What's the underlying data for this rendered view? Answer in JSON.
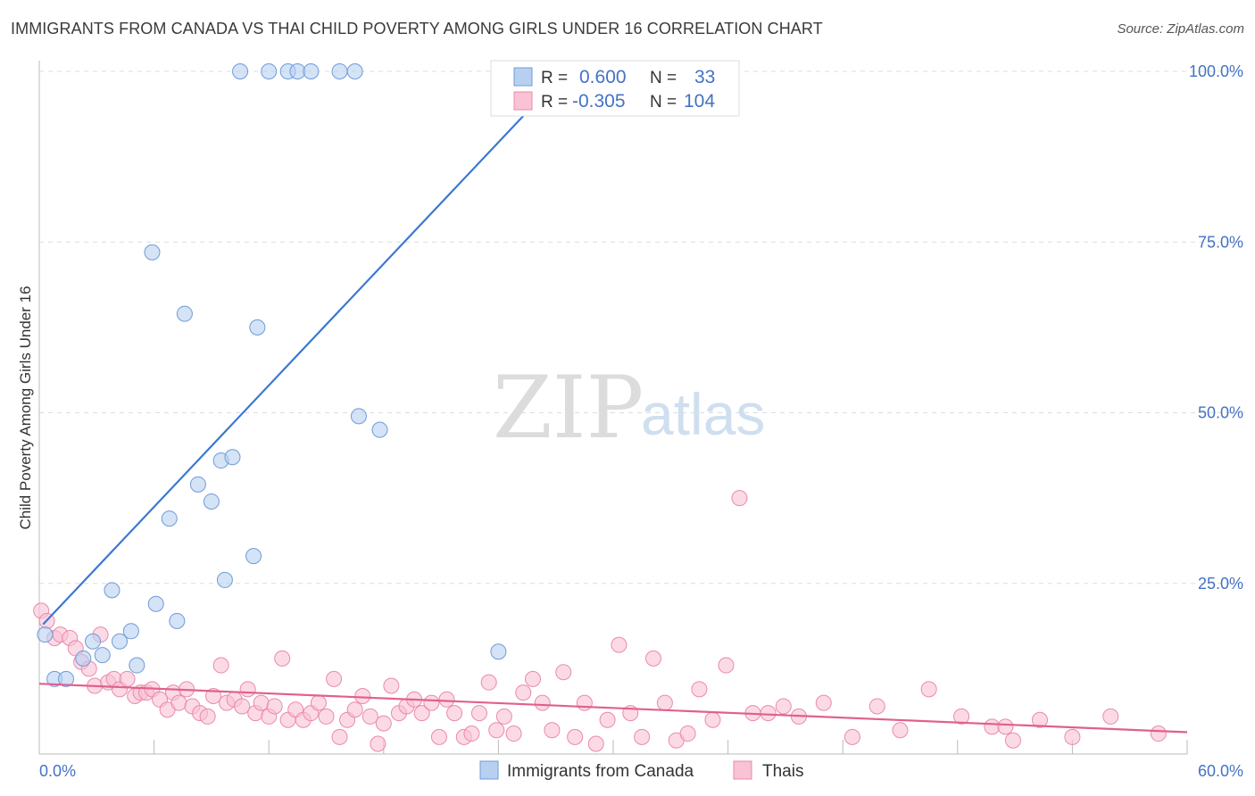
{
  "header": {
    "title": "IMMIGRANTS FROM CANADA VS THAI CHILD POVERTY AMONG GIRLS UNDER 16 CORRELATION CHART",
    "source": "Source: ZipAtlas.com"
  },
  "watermark": {
    "zip": "ZIP",
    "atlas": "atlas"
  },
  "colors": {
    "blue_fill": "#b8d0f0",
    "blue_stroke": "#6f9bd8",
    "blue_line": "#3a78d2",
    "pink_fill": "#f9c2d5",
    "pink_stroke": "#ea8aaa",
    "pink_line": "#e0608c",
    "tick_text": "#4472c4",
    "grid": "#dddddd"
  },
  "stats": {
    "blue": {
      "r_label": "R =",
      "r_value": "0.600",
      "n_label": "N =",
      "n_value": "33"
    },
    "pink": {
      "r_label": "R =",
      "r_value": "-0.305",
      "n_label": "N =",
      "n_value": "104"
    }
  },
  "chart_data": {
    "type": "scatter",
    "title": "IMMIGRANTS FROM CANADA VS THAI CHILD POVERTY AMONG GIRLS UNDER 16 CORRELATION CHART",
    "xlabel": "",
    "ylabel": "Child Poverty Among Girls Under 16",
    "xlim": [
      0,
      60
    ],
    "ylim": [
      0,
      100
    ],
    "x_ticks": [
      {
        "value": 0,
        "label": "0.0%"
      },
      {
        "value": 60,
        "label": "60.0%"
      }
    ],
    "y_ticks": [
      {
        "value": 25,
        "label": "25.0%"
      },
      {
        "value": 50,
        "label": "50.0%"
      },
      {
        "value": 75,
        "label": "75.0%"
      },
      {
        "value": 100,
        "label": "100.0%"
      }
    ],
    "grid": "horizontal dashed",
    "legend_position": "bottom-center",
    "series": [
      {
        "name": "Immigrants from Canada",
        "color": "#b8d0f0",
        "r": 0.6,
        "n": 33,
        "trend": {
          "x": [
            0.2,
            27.5
          ],
          "y": [
            19.0,
            100.0
          ]
        },
        "points": [
          [
            0.3,
            17.5
          ],
          [
            0.8,
            11.0
          ],
          [
            1.4,
            11.0
          ],
          [
            2.3,
            14.0
          ],
          [
            2.8,
            16.5
          ],
          [
            3.3,
            14.5
          ],
          [
            3.8,
            24.0
          ],
          [
            4.2,
            16.5
          ],
          [
            4.8,
            18.0
          ],
          [
            5.1,
            13.0
          ],
          [
            5.9,
            73.5
          ],
          [
            6.1,
            22.0
          ],
          [
            6.8,
            34.5
          ],
          [
            7.2,
            19.5
          ],
          [
            7.6,
            64.5
          ],
          [
            8.3,
            39.5
          ],
          [
            9.0,
            37.0
          ],
          [
            9.5,
            43.0
          ],
          [
            9.7,
            25.5
          ],
          [
            10.1,
            43.5
          ],
          [
            10.5,
            100.0
          ],
          [
            11.2,
            29.0
          ],
          [
            11.4,
            62.5
          ],
          [
            12.0,
            100.0
          ],
          [
            13.0,
            100.0
          ],
          [
            13.5,
            100.0
          ],
          [
            14.2,
            100.0
          ],
          [
            15.7,
            100.0
          ],
          [
            16.5,
            100.0
          ],
          [
            16.7,
            49.5
          ],
          [
            17.8,
            47.5
          ],
          [
            24.0,
            15.0
          ],
          [
            33.2,
            100.0
          ]
        ]
      },
      {
        "name": "Thais",
        "color": "#f9c2d5",
        "r": -0.305,
        "n": 104,
        "trend": {
          "x": [
            0,
            60
          ],
          "y": [
            10.3,
            3.2
          ]
        },
        "points": [
          [
            0.1,
            21.0
          ],
          [
            0.4,
            19.5
          ],
          [
            0.8,
            17.0
          ],
          [
            1.1,
            17.5
          ],
          [
            1.6,
            17.0
          ],
          [
            1.9,
            15.5
          ],
          [
            2.2,
            13.5
          ],
          [
            2.6,
            12.5
          ],
          [
            2.9,
            10.0
          ],
          [
            3.2,
            17.5
          ],
          [
            3.6,
            10.5
          ],
          [
            3.9,
            11.0
          ],
          [
            4.2,
            9.5
          ],
          [
            4.6,
            11.0
          ],
          [
            5.0,
            8.5
          ],
          [
            5.3,
            9.0
          ],
          [
            5.6,
            9.0
          ],
          [
            5.9,
            9.5
          ],
          [
            6.3,
            8.0
          ],
          [
            6.7,
            6.5
          ],
          [
            7.0,
            9.0
          ],
          [
            7.3,
            7.5
          ],
          [
            7.7,
            9.5
          ],
          [
            8.0,
            7.0
          ],
          [
            8.4,
            6.0
          ],
          [
            8.8,
            5.5
          ],
          [
            9.1,
            8.5
          ],
          [
            9.5,
            13.0
          ],
          [
            9.8,
            7.5
          ],
          [
            10.2,
            8.0
          ],
          [
            10.6,
            7.0
          ],
          [
            10.9,
            9.5
          ],
          [
            11.3,
            6.0
          ],
          [
            11.6,
            7.5
          ],
          [
            12.0,
            5.5
          ],
          [
            12.3,
            7.0
          ],
          [
            12.7,
            14.0
          ],
          [
            13.0,
            5.0
          ],
          [
            13.4,
            6.5
          ],
          [
            13.8,
            5.0
          ],
          [
            14.2,
            6.0
          ],
          [
            14.6,
            7.5
          ],
          [
            15.0,
            5.5
          ],
          [
            15.4,
            11.0
          ],
          [
            15.7,
            2.5
          ],
          [
            16.1,
            5.0
          ],
          [
            16.5,
            6.5
          ],
          [
            16.9,
            8.5
          ],
          [
            17.3,
            5.5
          ],
          [
            17.7,
            1.5
          ],
          [
            18.0,
            4.5
          ],
          [
            18.4,
            10.0
          ],
          [
            18.8,
            6.0
          ],
          [
            19.2,
            7.0
          ],
          [
            19.6,
            8.0
          ],
          [
            20.0,
            6.0
          ],
          [
            20.5,
            7.5
          ],
          [
            20.9,
            2.5
          ],
          [
            21.3,
            8.0
          ],
          [
            21.7,
            6.0
          ],
          [
            22.2,
            2.5
          ],
          [
            22.6,
            3.0
          ],
          [
            23.0,
            6.0
          ],
          [
            23.5,
            10.5
          ],
          [
            23.9,
            3.5
          ],
          [
            24.3,
            5.5
          ],
          [
            24.8,
            3.0
          ],
          [
            25.3,
            9.0
          ],
          [
            25.8,
            11.0
          ],
          [
            26.3,
            7.5
          ],
          [
            26.8,
            3.5
          ],
          [
            27.4,
            12.0
          ],
          [
            28.0,
            2.5
          ],
          [
            28.5,
            7.5
          ],
          [
            29.1,
            1.5
          ],
          [
            29.7,
            5.0
          ],
          [
            30.3,
            16.0
          ],
          [
            30.9,
            6.0
          ],
          [
            31.5,
            2.5
          ],
          [
            32.1,
            14.0
          ],
          [
            32.7,
            7.5
          ],
          [
            33.3,
            2.0
          ],
          [
            33.9,
            3.0
          ],
          [
            34.5,
            9.5
          ],
          [
            35.2,
            5.0
          ],
          [
            35.9,
            13.0
          ],
          [
            36.6,
            37.5
          ],
          [
            37.3,
            6.0
          ],
          [
            38.1,
            6.0
          ],
          [
            38.9,
            7.0
          ],
          [
            39.7,
            5.5
          ],
          [
            41.0,
            7.5
          ],
          [
            42.5,
            2.5
          ],
          [
            43.8,
            7.0
          ],
          [
            45.0,
            3.5
          ],
          [
            46.5,
            9.5
          ],
          [
            48.2,
            5.5
          ],
          [
            49.8,
            4.0
          ],
          [
            50.5,
            4.0
          ],
          [
            50.9,
            2.0
          ],
          [
            52.3,
            5.0
          ],
          [
            54.0,
            2.5
          ],
          [
            56.0,
            5.5
          ],
          [
            58.5,
            3.0
          ]
        ]
      }
    ]
  },
  "legend": {
    "items": [
      {
        "label": "Immigrants from Canada",
        "color": "#b8d0f0"
      },
      {
        "label": "Thais",
        "color": "#f9c2d5"
      }
    ]
  }
}
